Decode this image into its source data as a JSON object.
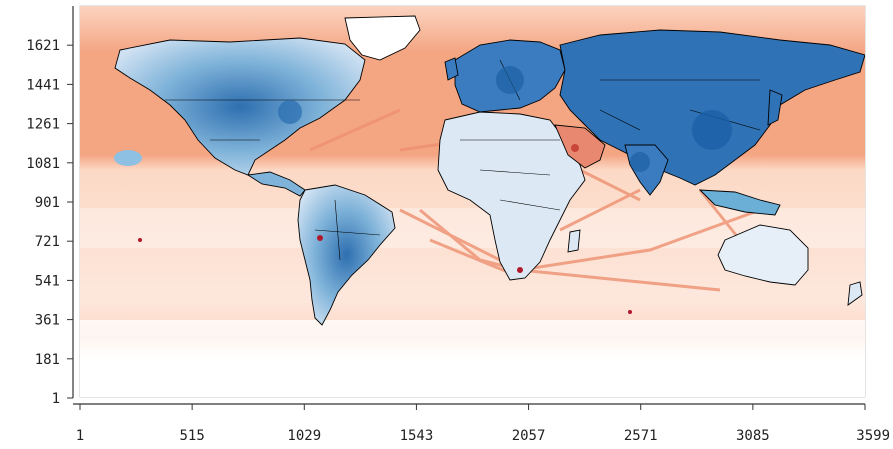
{
  "chart_data": {
    "type": "heatmap",
    "title": "",
    "xlabel": "",
    "ylabel": "",
    "xlim": [
      1,
      3599
    ],
    "ylim": [
      1,
      1801
    ],
    "x_ticks": [
      "1",
      "515",
      "1029",
      "1543",
      "2057",
      "2571",
      "3085",
      "3599"
    ],
    "y_ticks": [
      "1",
      "181",
      "361",
      "541",
      "721",
      "901",
      "1081",
      "1261",
      "1441",
      "1621"
    ],
    "colors": {
      "land_low": "#dbe9f6",
      "land_mid": "#6baed6",
      "land_high": "#2166ac",
      "ocean_low": "#fde0d2",
      "ocean_mid": "#f4a582",
      "ocean_high": "#d6604d",
      "hotspot": "#b2182b",
      "borders": "#000000",
      "axis": "#333333"
    }
  }
}
